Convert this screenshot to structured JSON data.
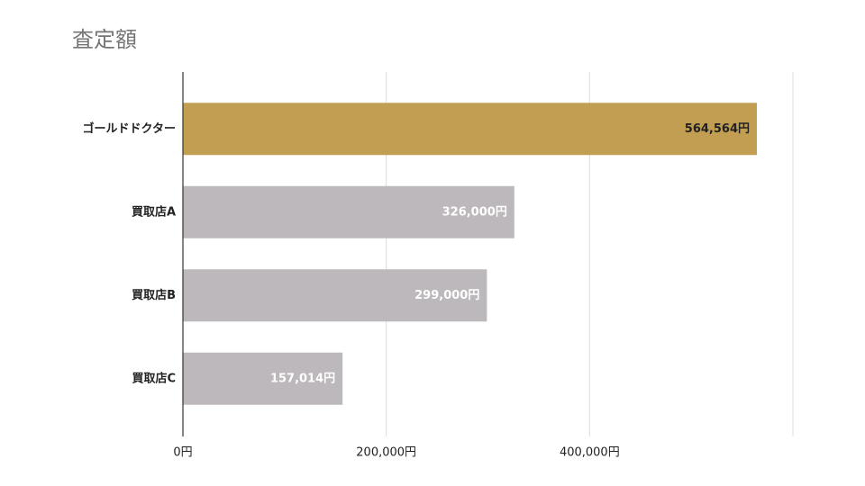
{
  "chart_data": {
    "type": "hbar",
    "title": "査定額",
    "categories": [
      "ゴールドドクター",
      "買取店A",
      "買取店B",
      "買取店C"
    ],
    "values": [
      564564,
      326000,
      299000,
      157014
    ],
    "value_labels": [
      "564,564円",
      "326,000円",
      "299,000円",
      "157,014円"
    ],
    "colors": [
      "#c29e52",
      "#bdb8bb",
      "#bdb8bb",
      "#bdb8bb"
    ],
    "value_label_colors": [
      "#222222",
      "#ffffff",
      "#ffffff",
      "#ffffff"
    ],
    "xlim": [
      0,
      600000
    ],
    "xticks": [
      {
        "value": 0,
        "label": "0円"
      },
      {
        "value": 200000,
        "label": "200,000円"
      },
      {
        "value": 400000,
        "label": "400,000円"
      }
    ],
    "grid": true
  }
}
